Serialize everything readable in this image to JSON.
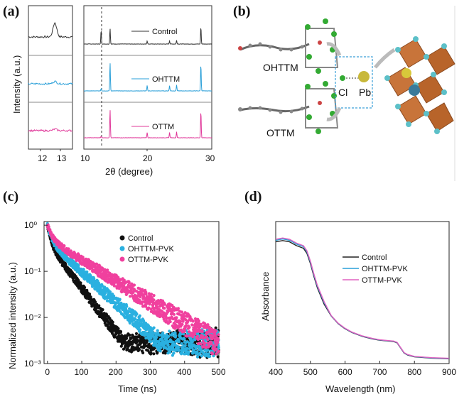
{
  "panels": {
    "a": {
      "label": "(a)"
    },
    "b": {
      "label": "(b)"
    },
    "c": {
      "label": "(c)"
    },
    "d": {
      "label": "(d)"
    }
  },
  "chart_data": [
    {
      "panel": "a",
      "type": "line",
      "ylabel": "Intensity (a.u.)",
      "xlabel": "2θ (degree)",
      "inset_xlim": [
        11.5,
        13.5
      ],
      "inset_xticks": [
        "12",
        "13"
      ],
      "xlim": [
        10,
        30
      ],
      "xticks": [
        "10",
        "20",
        "30"
      ],
      "dashed_line_x": 12.7,
      "series": [
        {
          "name": "Control",
          "color": "#333333",
          "peaks": [
            {
              "x": 12.7,
              "h": 0.45
            },
            {
              "x": 14.1,
              "h": 0.5
            },
            {
              "x": 19.9,
              "h": 0.1
            },
            {
              "x": 23.4,
              "h": 0.1
            },
            {
              "x": 24.5,
              "h": 0.12
            },
            {
              "x": 28.3,
              "h": 0.55
            }
          ]
        },
        {
          "name": "OHTTM",
          "color": "#2a9fd8",
          "peaks": [
            {
              "x": 12.7,
              "h": 0.08
            },
            {
              "x": 14.1,
              "h": 0.95
            },
            {
              "x": 19.9,
              "h": 0.18
            },
            {
              "x": 23.4,
              "h": 0.18
            },
            {
              "x": 24.5,
              "h": 0.2
            },
            {
              "x": 28.3,
              "h": 0.9
            }
          ]
        },
        {
          "name": "OTTM",
          "color": "#e0399a",
          "peaks": [
            {
              "x": 12.7,
              "h": 0.05
            },
            {
              "x": 14.1,
              "h": 0.95
            },
            {
              "x": 19.9,
              "h": 0.18
            },
            {
              "x": 23.4,
              "h": 0.18
            },
            {
              "x": 24.5,
              "h": 0.2
            },
            {
              "x": 28.3,
              "h": 0.9
            }
          ]
        }
      ]
    },
    {
      "panel": "b",
      "type": "diagram",
      "labels": [
        "OHTTM",
        "OTTM",
        "Cl",
        "Pb"
      ]
    },
    {
      "panel": "c",
      "type": "scatter",
      "xlabel": "Time (ns)",
      "ylabel": "Normalized intensity (a.u.)",
      "xlim": [
        -10,
        500
      ],
      "ylim": [
        0.001,
        1.2
      ],
      "yscale": "log",
      "xticks": [
        "0",
        "100",
        "200",
        "300",
        "400",
        "500"
      ],
      "yticks": [
        "10⁰",
        "10⁻¹",
        "10⁻²",
        "10⁻³"
      ],
      "legend_position": "top-right",
      "series": [
        {
          "name": "Control",
          "color": "#111111",
          "tau": [
            8,
            45
          ],
          "amp": [
            0.6,
            0.4
          ]
        },
        {
          "name": "OHTTM-PVK",
          "color": "#2ab0e0",
          "tau": [
            10,
            65
          ],
          "amp": [
            0.55,
            0.45
          ]
        },
        {
          "name": "OTTM-PVK",
          "color": "#f0409e",
          "tau": [
            12,
            95
          ],
          "amp": [
            0.5,
            0.5
          ]
        }
      ]
    },
    {
      "panel": "d",
      "type": "line",
      "xlabel": "Wavelength (nm)",
      "ylabel": "Absorbance",
      "xlim": [
        400,
        900
      ],
      "xticks": [
        "400",
        "500",
        "600",
        "700",
        "800",
        "900"
      ],
      "legend_position": "center",
      "series": [
        {
          "name": "Control",
          "color": "#222222"
        },
        {
          "name": "OHTTM-PVK",
          "color": "#2a9fd8"
        },
        {
          "name": "OTTM-PVK",
          "color": "#e060c0"
        }
      ],
      "curve": {
        "x": [
          400,
          420,
          440,
          460,
          480,
          490,
          500,
          510,
          520,
          540,
          560,
          580,
          600,
          620,
          650,
          680,
          700,
          720,
          740,
          750,
          760,
          770,
          780,
          800,
          850,
          900
        ],
        "y": [
          0.93,
          0.94,
          0.93,
          0.9,
          0.88,
          0.84,
          0.76,
          0.66,
          0.57,
          0.44,
          0.35,
          0.29,
          0.25,
          0.22,
          0.19,
          0.17,
          0.16,
          0.155,
          0.15,
          0.14,
          0.1,
          0.06,
          0.045,
          0.03,
          0.02,
          0.015
        ]
      }
    }
  ]
}
